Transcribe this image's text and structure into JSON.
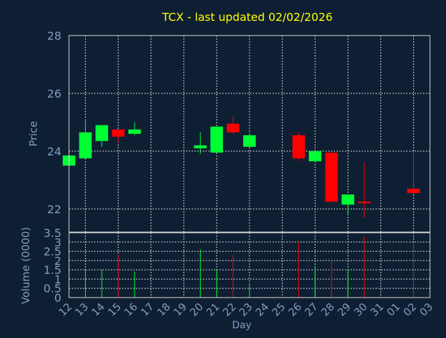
{
  "colors": {
    "background": "#0f1f33",
    "title": "#ffff00",
    "axis_text": "#7f9fbf",
    "grid": "#d9d9d9",
    "frame": "#d9d9d9",
    "up": "#00ff33",
    "down": "#ff0000"
  },
  "chart_data": [
    {
      "type": "candlestick",
      "title": "TCX - last updated 02/02/2026",
      "xlabel": "",
      "ylabel": "Price",
      "ylim": [
        21.2,
        28
      ],
      "yticks": [
        22,
        24,
        26,
        28
      ],
      "grid": true,
      "x_ticks": [
        "12",
        "13",
        "14",
        "15",
        "16",
        "17",
        "18",
        "19",
        "20",
        "21",
        "22",
        "23",
        "24",
        "25",
        "26",
        "27",
        "28",
        "29",
        "30",
        "31",
        "01",
        "02",
        "03"
      ],
      "candles": [
        {
          "day": "12",
          "open": 23.5,
          "high": 23.85,
          "low": 23.5,
          "close": 23.85
        },
        {
          "day": "13",
          "open": 23.75,
          "high": 25.1,
          "low": 23.75,
          "close": 24.65
        },
        {
          "day": "14",
          "open": 24.35,
          "high": 24.9,
          "low": 24.15,
          "close": 24.9
        },
        {
          "day": "15",
          "open": 24.75,
          "high": 24.75,
          "low": 24.3,
          "close": 24.5
        },
        {
          "day": "16",
          "open": 24.6,
          "high": 25.0,
          "low": 24.55,
          "close": 24.75
        },
        {
          "day": "20",
          "open": 24.1,
          "high": 24.65,
          "low": 23.9,
          "close": 24.2
        },
        {
          "day": "21",
          "open": 23.95,
          "high": 24.85,
          "low": 23.95,
          "close": 24.85
        },
        {
          "day": "22",
          "open": 24.95,
          "high": 25.2,
          "low": 24.6,
          "close": 24.65
        },
        {
          "day": "23",
          "open": 24.15,
          "high": 24.6,
          "low": 24.15,
          "close": 24.55
        },
        {
          "day": "26",
          "open": 24.55,
          "high": 24.65,
          "low": 23.65,
          "close": 23.75
        },
        {
          "day": "27",
          "open": 23.65,
          "high": 24.0,
          "low": 23.65,
          "close": 24.0
        },
        {
          "day": "28",
          "open": 23.95,
          "high": 23.95,
          "low": 22.25,
          "close": 22.25
        },
        {
          "day": "29",
          "open": 22.15,
          "high": 22.5,
          "low": 21.8,
          "close": 22.5
        },
        {
          "day": "30",
          "open": 22.25,
          "high": 23.6,
          "low": 21.7,
          "close": 22.2
        },
        {
          "day": "02",
          "open": 22.7,
          "high": 23.95,
          "low": 22.5,
          "close": 22.55
        }
      ]
    },
    {
      "type": "bar",
      "xlabel": "Day",
      "ylabel": "Volume (0000)",
      "ylim": [
        0,
        3.5
      ],
      "ytick_labels": [
        "0",
        "0.5",
        "1",
        "1.5",
        "2",
        "2.5",
        "3",
        "3.5"
      ],
      "grid": true,
      "x_ticks": [
        "12",
        "13",
        "14",
        "15",
        "16",
        "17",
        "18",
        "19",
        "20",
        "21",
        "22",
        "23",
        "24",
        "25",
        "26",
        "27",
        "28",
        "29",
        "30",
        "31",
        "01",
        "02",
        "03"
      ],
      "volumes": [
        {
          "day": "13",
          "value": 1.5,
          "dir": "up"
        },
        {
          "day": "14",
          "value": 1.5,
          "dir": "up"
        },
        {
          "day": "15",
          "value": 2.3,
          "dir": "down"
        },
        {
          "day": "16",
          "value": 1.4,
          "dir": "up"
        },
        {
          "day": "20",
          "value": 2.6,
          "dir": "up"
        },
        {
          "day": "21",
          "value": 1.5,
          "dir": "up"
        },
        {
          "day": "22",
          "value": 2.3,
          "dir": "down"
        },
        {
          "day": "23",
          "value": 0.8,
          "dir": "up"
        },
        {
          "day": "26",
          "value": 3.0,
          "dir": "down"
        },
        {
          "day": "27",
          "value": 1.7,
          "dir": "up"
        },
        {
          "day": "28",
          "value": 2.0,
          "dir": "down"
        },
        {
          "day": "29",
          "value": 1.5,
          "dir": "up"
        },
        {
          "day": "30",
          "value": 3.3,
          "dir": "down"
        },
        {
          "day": "02",
          "value": 3.0,
          "dir": "down"
        }
      ]
    }
  ]
}
